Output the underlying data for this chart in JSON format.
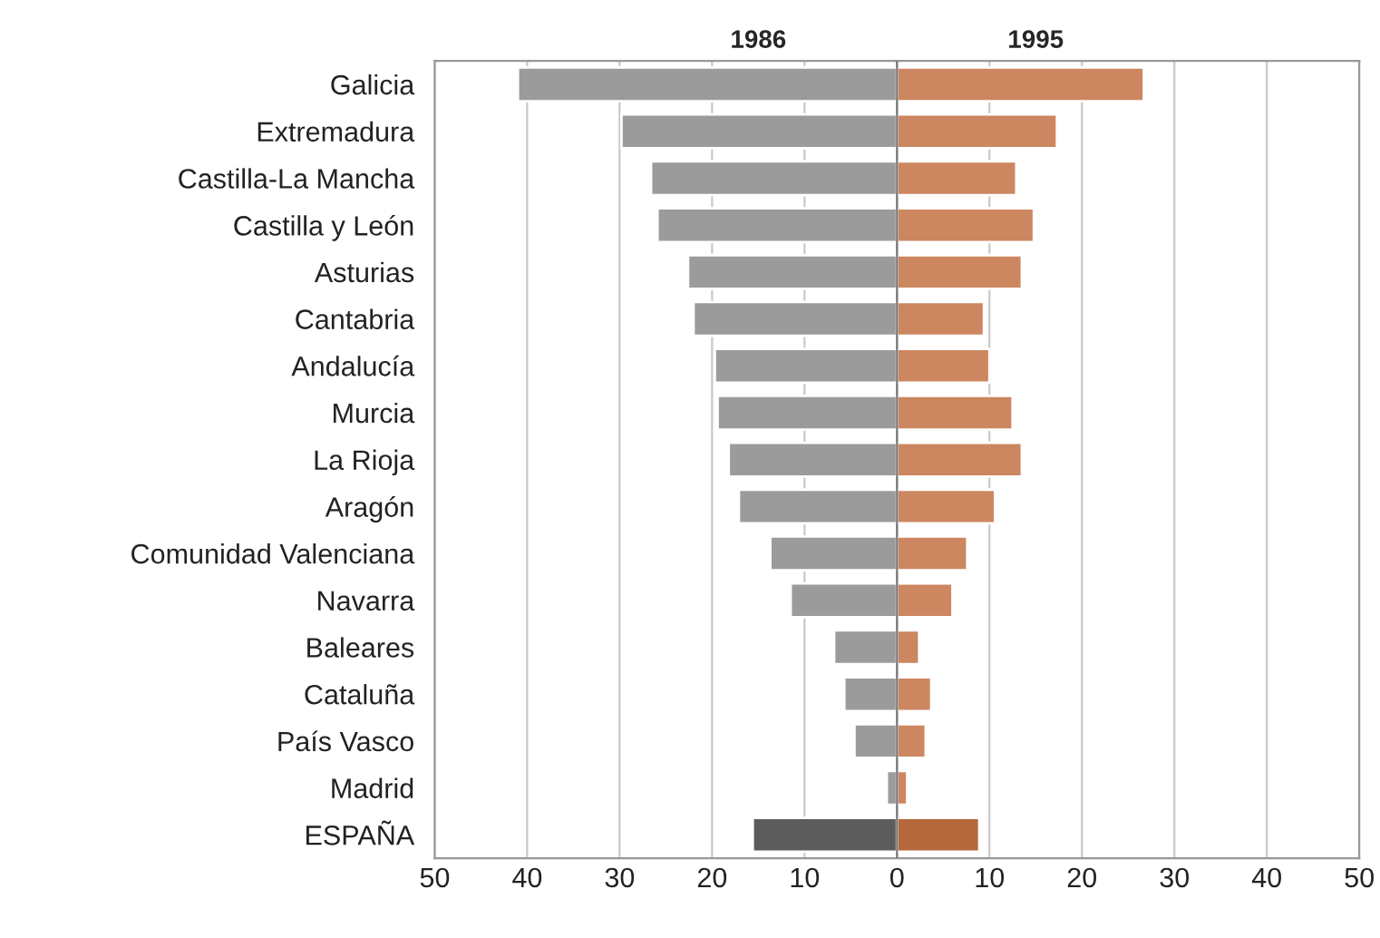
{
  "chart_data": {
    "type": "bar",
    "orientation": "horizontal",
    "stacked": true,
    "grid": "x",
    "categories": [
      "Galicia",
      "Extremadura",
      "Castilla-La Mancha",
      "Castilla y León",
      "Asturias",
      "Cantabria",
      "Andalucía",
      "Murcia",
      "La Rioja",
      "Aragón",
      "Comunidad Valenciana",
      "Navarra",
      "Baleares",
      "Cataluña",
      "País Vasco",
      "Madrid",
      "ESPAÑA"
    ],
    "series": [
      {
        "name": "1986",
        "colors": [
          "#9b9b9b",
          "#9b9b9b",
          "#9b9b9b",
          "#9b9b9b",
          "#9b9b9b",
          "#9b9b9b",
          "#9b9b9b",
          "#9b9b9b",
          "#9b9b9b",
          "#9b9b9b",
          "#9b9b9b",
          "#9b9b9b",
          "#9b9b9b",
          "#9b9b9b",
          "#9b9b9b",
          "#9b9b9b",
          "#5c5c5c"
        ],
        "values": [
          -41,
          -29.8,
          -26.6,
          -25.9,
          -22.6,
          -22,
          -19.7,
          -19.4,
          -18.2,
          -17.1,
          -13.7,
          -11.5,
          -6.8,
          -5.7,
          -4.6,
          -1.1,
          -15.6
        ]
      },
      {
        "name": "1995",
        "colors": [
          "#cc8660",
          "#cc8660",
          "#cc8660",
          "#cc8660",
          "#cc8660",
          "#cc8660",
          "#cc8660",
          "#cc8660",
          "#cc8660",
          "#cc8660",
          "#cc8660",
          "#cc8660",
          "#cc8660",
          "#cc8660",
          "#cc8660",
          "#cc8660",
          "#b5683c"
        ],
        "values": [
          26.7,
          17.3,
          12.9,
          14.8,
          13.5,
          9.4,
          10,
          12.5,
          13.5,
          10.6,
          7.6,
          6,
          2.4,
          3.7,
          3.1,
          1.1,
          8.9
        ]
      }
    ],
    "xlim": [
      -50,
      50
    ],
    "xticks": [
      {
        "value": -50,
        "label": "50"
      },
      {
        "value": -40,
        "label": "40"
      },
      {
        "value": -30,
        "label": "30"
      },
      {
        "value": -20,
        "label": "20"
      },
      {
        "value": -10,
        "label": "10"
      },
      0,
      10,
      20,
      30,
      40,
      50
    ],
    "legend": false
  }
}
